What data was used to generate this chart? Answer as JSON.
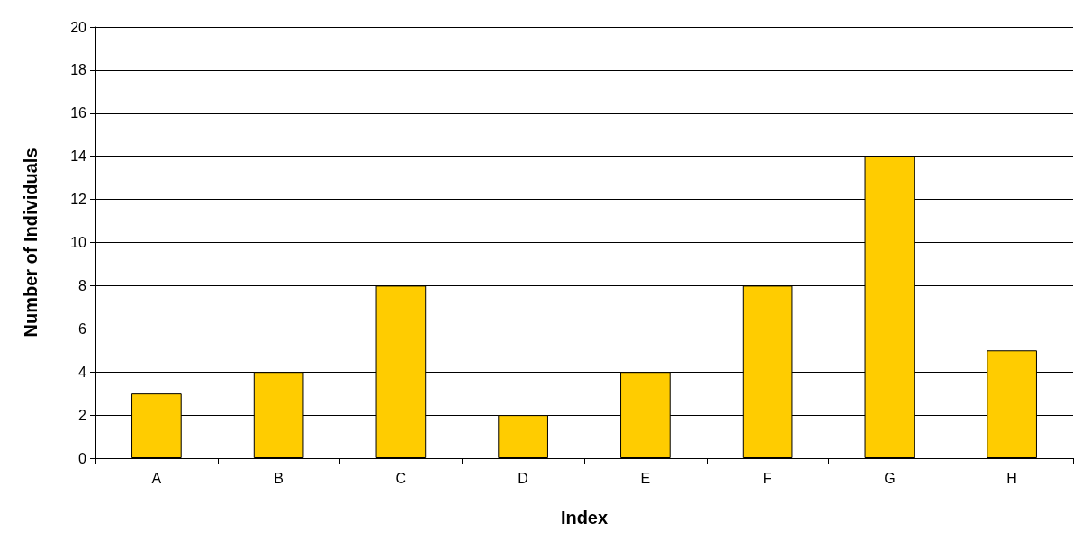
{
  "chart_data": {
    "type": "bar",
    "xlabel": "Index",
    "ylabel": "Number of Individuals",
    "categories": [
      "A",
      "B",
      "C",
      "D",
      "E",
      "F",
      "G",
      "H"
    ],
    "values": [
      3,
      4,
      8,
      2,
      4,
      8,
      14,
      5
    ],
    "color": "#ffcc00",
    "ylim": [
      0,
      20
    ],
    "yticks": [
      0,
      2,
      4,
      6,
      8,
      10,
      12,
      14,
      16,
      18,
      20
    ],
    "grid": "y"
  }
}
